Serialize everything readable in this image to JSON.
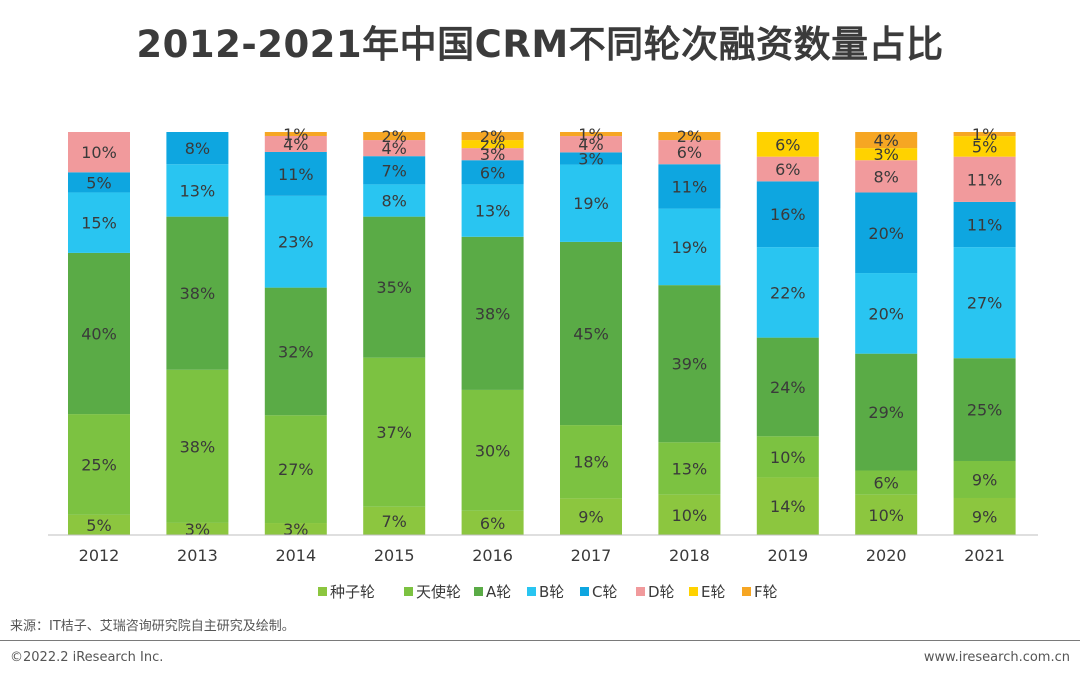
{
  "title": "2012-2021年中国CRM不同轮次融资数量占比",
  "source": "来源：IT桔子、艾瑞咨询研究院自主研究及绘制。",
  "copyright": "©2022.2 iResearch Inc.",
  "website": "www.iresearch.com.cn",
  "chart_data": {
    "type": "bar",
    "stacked": true,
    "title": "2012-2021年中国CRM不同轮次融资数量占比",
    "categories": [
      "2012",
      "2013",
      "2014",
      "2015",
      "2016",
      "2017",
      "2018",
      "2019",
      "2020",
      "2021"
    ],
    "ylim": [
      0,
      100
    ],
    "legend_position": "bottom",
    "series": [
      {
        "name": "种子轮",
        "color": "#8cc63f",
        "values": [
          5,
          3,
          3,
          7,
          6,
          9,
          10,
          14,
          10,
          9
        ]
      },
      {
        "name": "天使轮",
        "color": "#7cc241",
        "values": [
          25,
          38,
          27,
          37,
          30,
          18,
          13,
          10,
          6,
          9
        ]
      },
      {
        "name": "A轮",
        "color": "#5aab46",
        "values": [
          40,
          38,
          32,
          35,
          38,
          45,
          39,
          24,
          29,
          25
        ]
      },
      {
        "name": "B轮",
        "color": "#29c5f1",
        "values": [
          15,
          13,
          23,
          8,
          13,
          19,
          19,
          22,
          20,
          27
        ]
      },
      {
        "name": "C轮",
        "color": "#0ea6e0",
        "values": [
          5,
          8,
          11,
          7,
          6,
          3,
          11,
          16,
          20,
          11
        ]
      },
      {
        "name": "D轮",
        "color": "#f19a9c",
        "values": [
          10,
          0,
          4,
          4,
          3,
          4,
          6,
          6,
          8,
          11
        ]
      },
      {
        "name": "E轮",
        "color": "#ffd200",
        "values": [
          0,
          0,
          0,
          0,
          2,
          0,
          0,
          6,
          3,
          5
        ]
      },
      {
        "name": "F轮",
        "color": "#f6a623",
        "values": [
          0,
          0,
          1,
          2,
          2,
          1,
          2,
          0,
          4,
          1
        ]
      }
    ]
  }
}
